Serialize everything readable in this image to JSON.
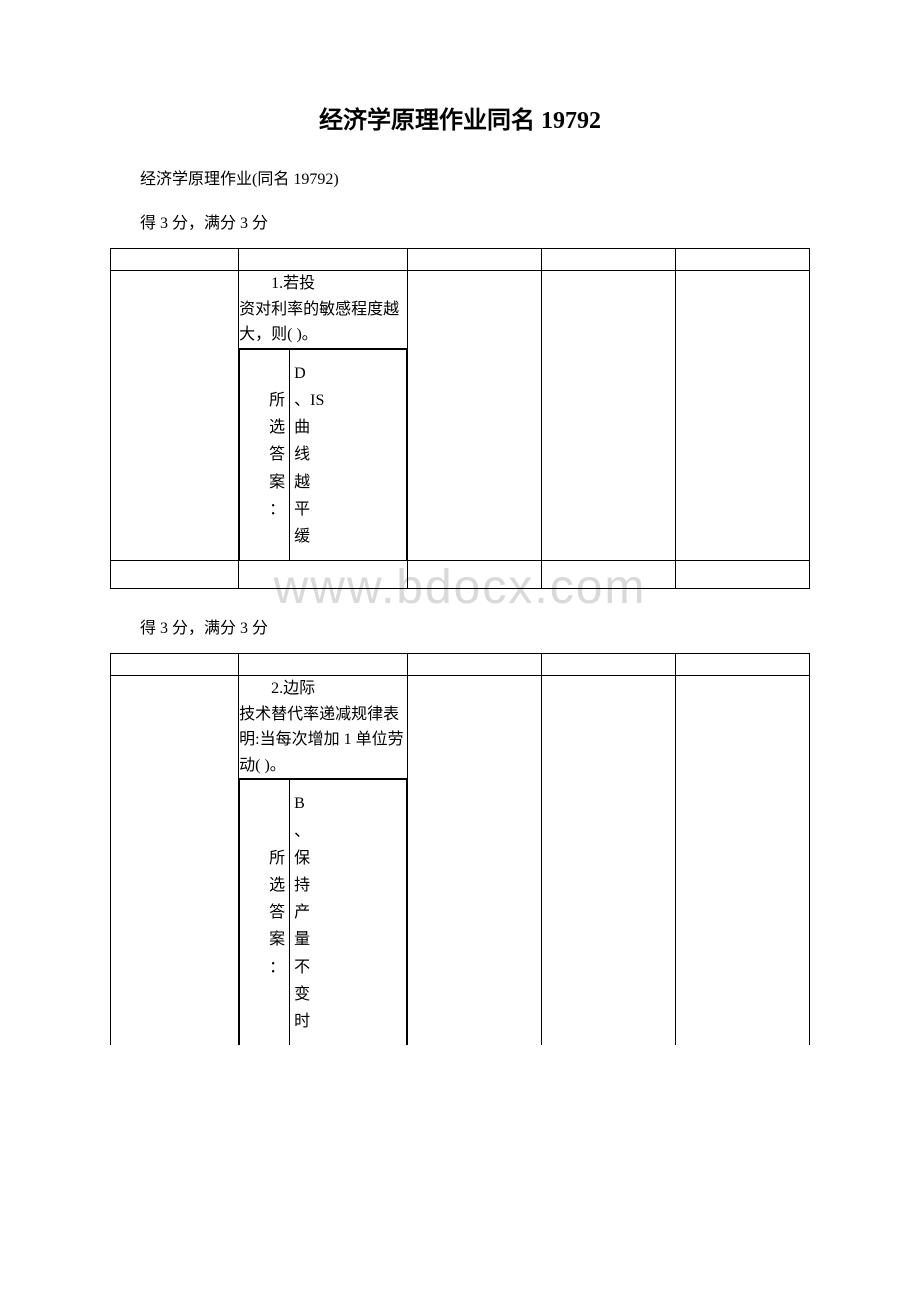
{
  "title": "经济学原理作业同名 19792",
  "subtitle": "经济学原理作业(同名 19792)",
  "score_text": "得 3 分，满分 3 分",
  "watermark": "www.bdocx.com",
  "question1": {
    "text_line1": "1.若投",
    "text_rest": "资对利率的敏感程度越大，则( )。",
    "answer_label_prefix": "所",
    "answer_label": "选答案：",
    "answer_text": "D、IS曲线越平缓"
  },
  "question2": {
    "text_line1": "2.边际",
    "text_rest": "技术替代率递减规律表明:当每次增加 1 单位劳动( )。",
    "answer_label_prefix": "所",
    "answer_label": "选答案：",
    "answer_text": "B、保持产量不变时"
  }
}
